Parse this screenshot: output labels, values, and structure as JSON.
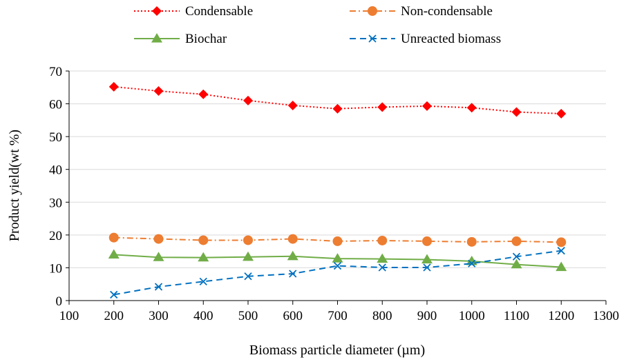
{
  "chart_data": {
    "type": "line",
    "xlabel": "Biomass particle diameter (µm)",
    "ylabel": "Product yield(wt %)",
    "xlim": [
      100,
      1300
    ],
    "ylim": [
      0,
      70
    ],
    "xticks": [
      100,
      200,
      300,
      400,
      500,
      600,
      700,
      800,
      900,
      1000,
      1100,
      1200,
      1300
    ],
    "yticks": [
      0,
      10,
      20,
      30,
      40,
      50,
      60,
      70
    ],
    "grid": "horizontal",
    "legend_position": "top",
    "x": [
      200,
      300,
      400,
      500,
      600,
      700,
      800,
      900,
      1000,
      1100,
      1200
    ],
    "series": [
      {
        "name": "Condensable",
        "color": "#ff0000",
        "line_style": "dotted",
        "marker": "diamond",
        "values": [
          65.2,
          63.9,
          62.9,
          61.0,
          59.5,
          58.5,
          59.0,
          59.3,
          58.8,
          57.5,
          57.0
        ]
      },
      {
        "name": "Non-condensable",
        "color": "#ed7d31",
        "line_style": "dash-dot",
        "marker": "circle",
        "values": [
          19.2,
          18.8,
          18.4,
          18.4,
          18.8,
          18.1,
          18.3,
          18.1,
          17.9,
          18.1,
          17.8
        ]
      },
      {
        "name": "Biochar",
        "color": "#70ad47",
        "line_style": "solid",
        "marker": "triangle",
        "values": [
          14.0,
          13.2,
          13.1,
          13.3,
          13.5,
          12.8,
          12.7,
          12.5,
          12.0,
          11.0,
          10.2
        ]
      },
      {
        "name": "Unreacted biomass",
        "color": "#0070c0",
        "line_style": "dashed",
        "marker": "x",
        "values": [
          1.8,
          4.2,
          5.8,
          7.4,
          8.2,
          10.6,
          10.1,
          10.1,
          11.3,
          13.4,
          15.2
        ]
      }
    ]
  }
}
